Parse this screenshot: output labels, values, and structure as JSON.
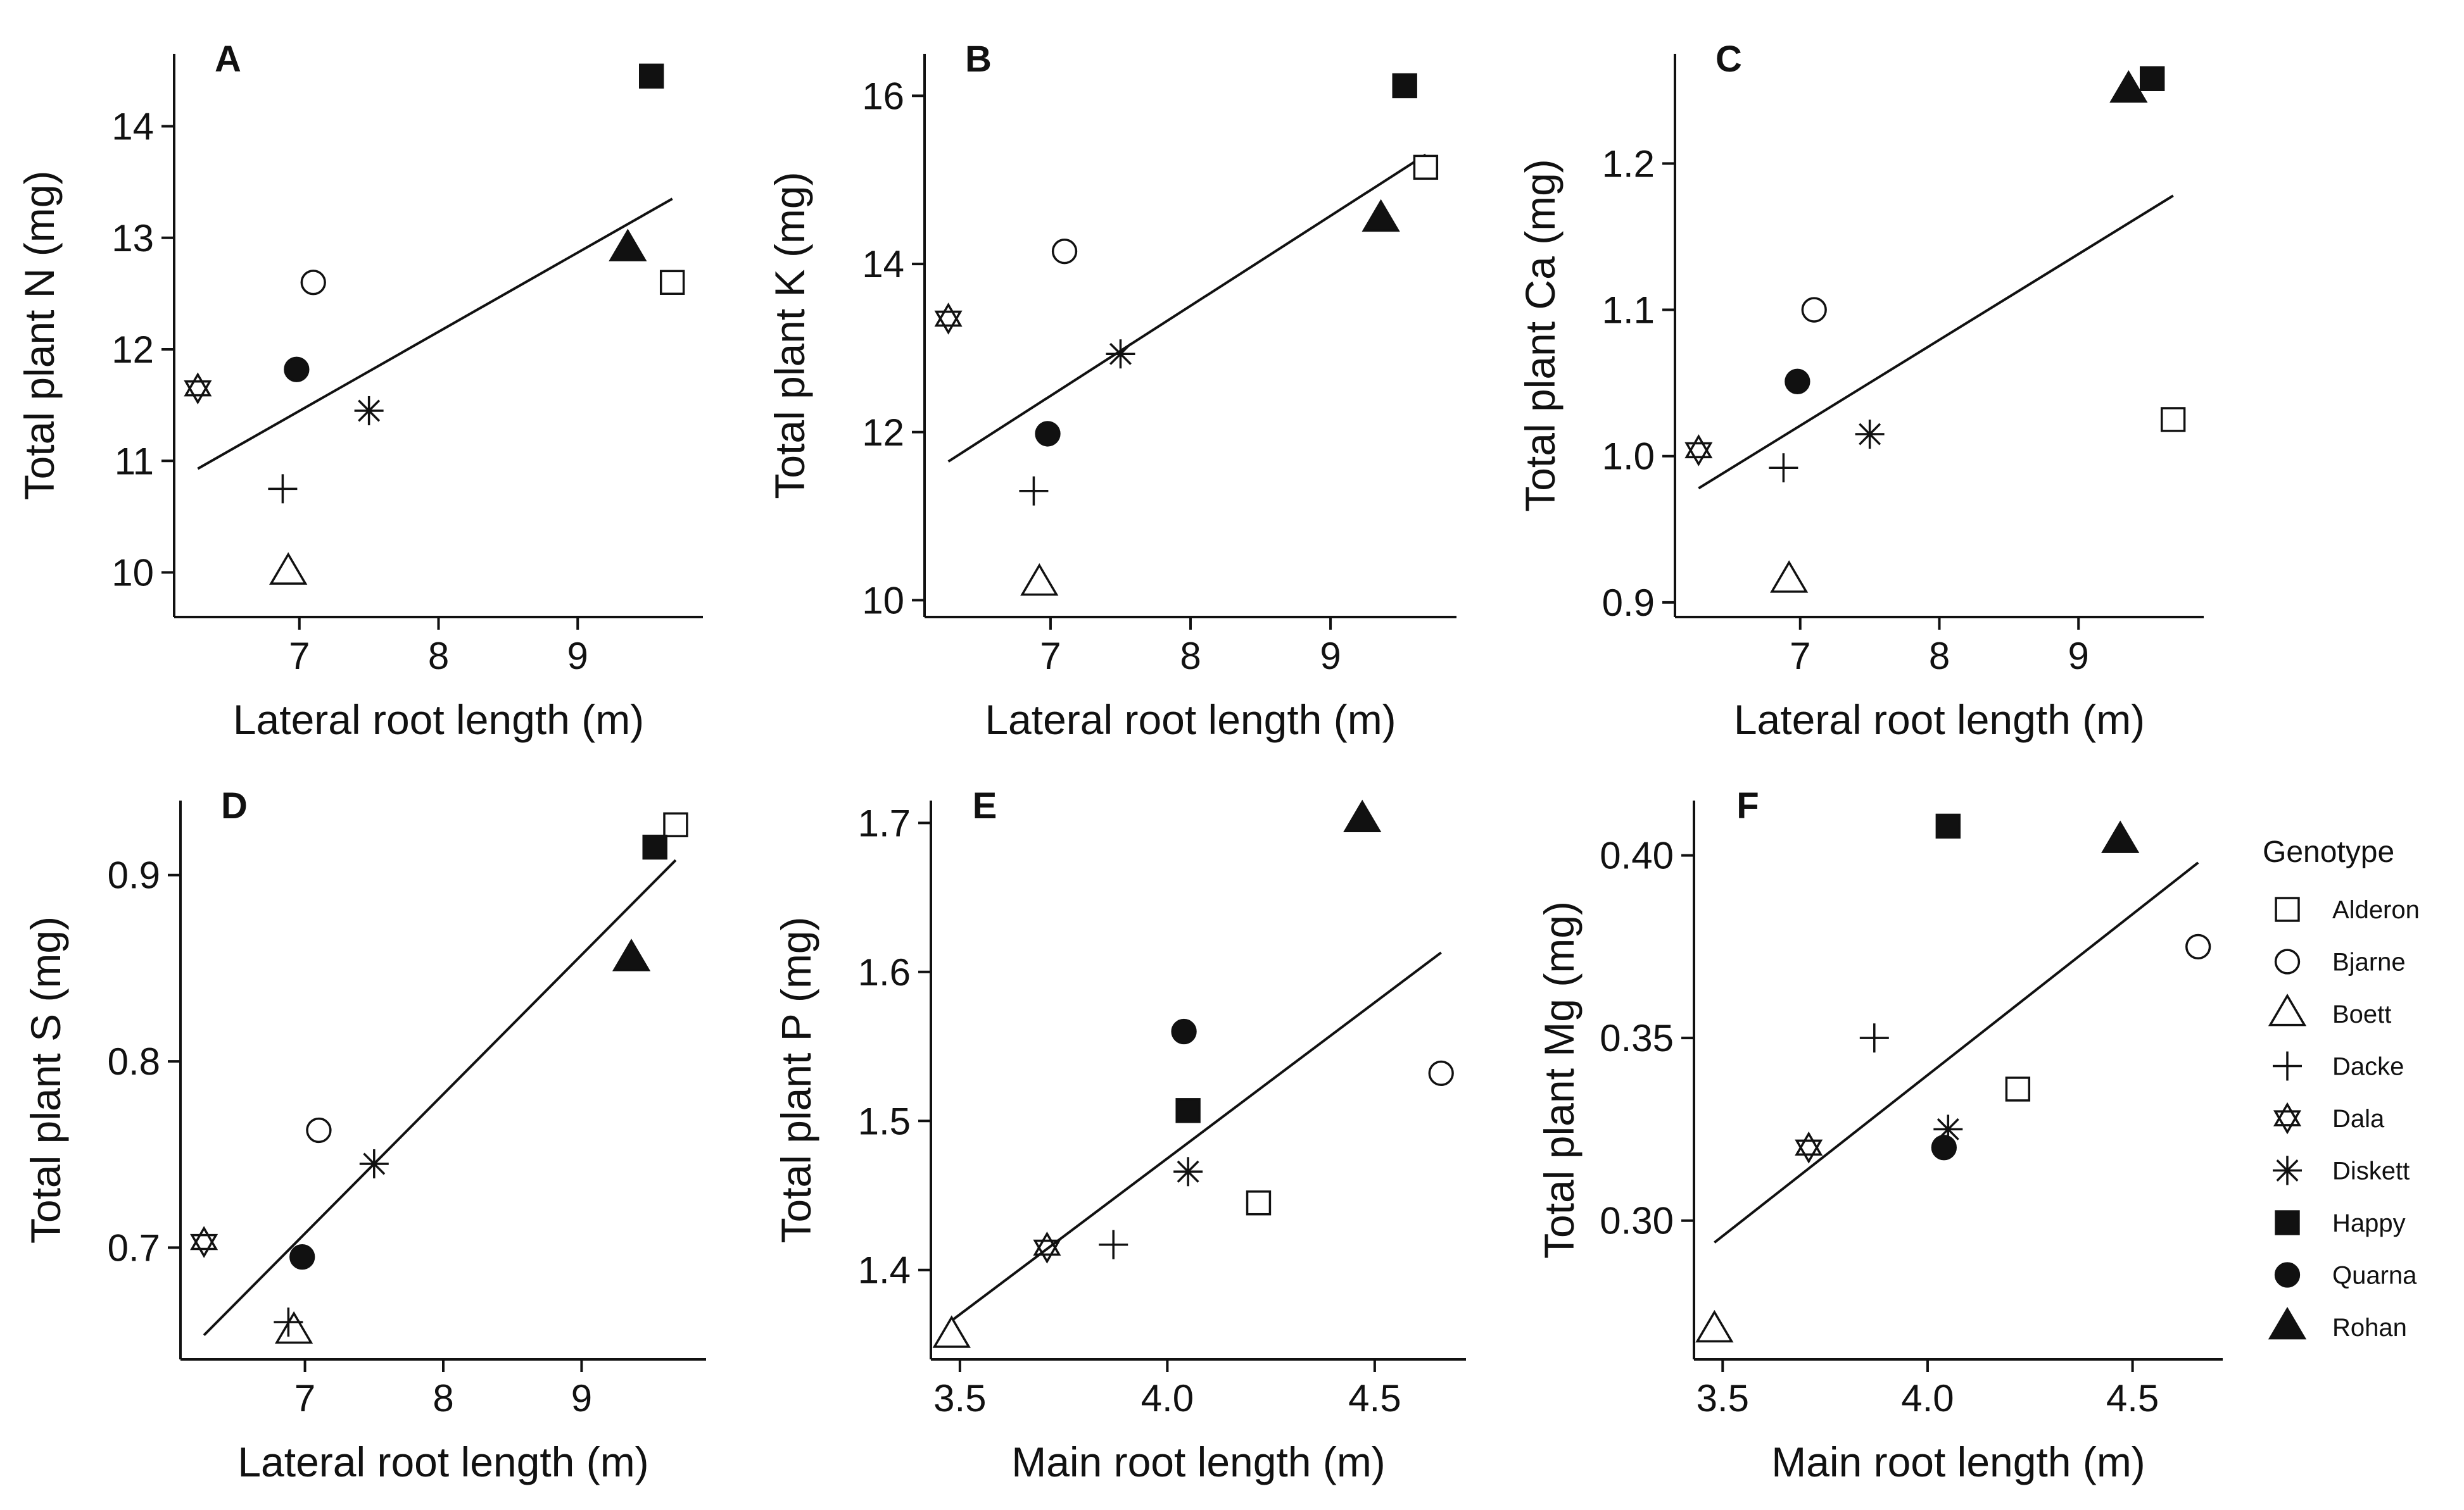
{
  "legend": {
    "title": "Genotype",
    "entries": [
      {
        "name": "Alderon",
        "marker": "open-square"
      },
      {
        "name": "Bjarne",
        "marker": "open-circle"
      },
      {
        "name": "Boett",
        "marker": "open-triangle"
      },
      {
        "name": "Dacke",
        "marker": "plus"
      },
      {
        "name": "Dala",
        "marker": "star-of-david"
      },
      {
        "name": "Diskett",
        "marker": "asterisk"
      },
      {
        "name": "Happy",
        "marker": "filled-square"
      },
      {
        "name": "Quarna",
        "marker": "filled-circle"
      },
      {
        "name": "Rohan",
        "marker": "filled-triangle"
      }
    ]
  },
  "chart_data": [
    {
      "panel": "A",
      "type": "scatter",
      "xlabel": "Lateral root length (m)",
      "ylabel": "Total plant N (mg)",
      "xlim": [
        6.1,
        9.9
      ],
      "ylim": [
        9.6,
        14.65
      ],
      "xticks": [
        7,
        8,
        9
      ],
      "yticks": [
        10,
        11,
        12,
        13,
        14
      ],
      "tick_decimals": [
        0,
        0
      ],
      "fit": [
        [
          6.27,
          10.93
        ],
        [
          9.68,
          13.35
        ]
      ],
      "points": [
        {
          "genotype": "Alderon",
          "x": 9.68,
          "y": 12.6
        },
        {
          "genotype": "Bjarne",
          "x": 7.1,
          "y": 12.6
        },
        {
          "genotype": "Boett",
          "x": 6.92,
          "y": 10.0
        },
        {
          "genotype": "Dacke",
          "x": 6.88,
          "y": 10.75
        },
        {
          "genotype": "Dala",
          "x": 6.27,
          "y": 11.65
        },
        {
          "genotype": "Diskett",
          "x": 7.5,
          "y": 11.45
        },
        {
          "genotype": "Happy",
          "x": 9.53,
          "y": 14.45
        },
        {
          "genotype": "Quarna",
          "x": 6.98,
          "y": 11.82
        },
        {
          "genotype": "Rohan",
          "x": 9.36,
          "y": 12.9
        }
      ]
    },
    {
      "panel": "B",
      "type": "scatter",
      "xlabel": "Lateral root length (m)",
      "ylabel": "Total plant K (mg)",
      "xlim": [
        6.1,
        9.9
      ],
      "ylim": [
        9.8,
        16.5
      ],
      "xticks": [
        7,
        8,
        9
      ],
      "yticks": [
        10,
        12,
        14,
        16
      ],
      "tick_decimals": [
        0,
        0
      ],
      "fit": [
        [
          6.27,
          11.65
        ],
        [
          9.68,
          15.3
        ]
      ],
      "points": [
        {
          "genotype": "Alderon",
          "x": 9.68,
          "y": 15.15
        },
        {
          "genotype": "Bjarne",
          "x": 7.1,
          "y": 14.15
        },
        {
          "genotype": "Boett",
          "x": 6.92,
          "y": 10.2
        },
        {
          "genotype": "Dacke",
          "x": 6.88,
          "y": 11.3
        },
        {
          "genotype": "Dala",
          "x": 6.27,
          "y": 13.35
        },
        {
          "genotype": "Diskett",
          "x": 7.5,
          "y": 12.93
        },
        {
          "genotype": "Happy",
          "x": 9.53,
          "y": 16.12
        },
        {
          "genotype": "Quarna",
          "x": 6.98,
          "y": 11.98
        },
        {
          "genotype": "Rohan",
          "x": 9.36,
          "y": 14.53
        }
      ]
    },
    {
      "panel": "C",
      "type": "scatter",
      "xlabel": "Lateral root length (m)",
      "ylabel": "Total plant Ca (mg)",
      "xlim": [
        6.1,
        9.9
      ],
      "ylim": [
        0.89,
        1.275
      ],
      "xticks": [
        7,
        8,
        9
      ],
      "yticks": [
        0.9,
        1.0,
        1.1,
        1.2
      ],
      "tick_decimals": [
        0,
        1
      ],
      "fit": [
        [
          6.27,
          0.978
        ],
        [
          9.68,
          1.178
        ]
      ],
      "points": [
        {
          "genotype": "Alderon",
          "x": 9.68,
          "y": 1.025
        },
        {
          "genotype": "Bjarne",
          "x": 7.1,
          "y": 1.1
        },
        {
          "genotype": "Boett",
          "x": 6.92,
          "y": 0.915
        },
        {
          "genotype": "Dacke",
          "x": 6.88,
          "y": 0.992
        },
        {
          "genotype": "Dala",
          "x": 6.27,
          "y": 1.004
        },
        {
          "genotype": "Diskett",
          "x": 7.5,
          "y": 1.015
        },
        {
          "genotype": "Happy",
          "x": 9.53,
          "y": 1.258
        },
        {
          "genotype": "Quarna",
          "x": 6.98,
          "y": 1.051
        },
        {
          "genotype": "Rohan",
          "x": 9.36,
          "y": 1.25
        }
      ]
    },
    {
      "panel": "D",
      "type": "scatter",
      "xlabel": "Lateral root length (m)",
      "ylabel": "Total plant S (mg)",
      "xlim": [
        6.1,
        9.9
      ],
      "ylim": [
        0.64,
        0.94
      ],
      "xticks": [
        7,
        8,
        9
      ],
      "yticks": [
        0.7,
        0.8,
        0.9
      ],
      "tick_decimals": [
        0,
        1
      ],
      "fit": [
        [
          6.27,
          0.653
        ],
        [
          9.68,
          0.908
        ]
      ],
      "points": [
        {
          "genotype": "Alderon",
          "x": 9.68,
          "y": 0.927
        },
        {
          "genotype": "Bjarne",
          "x": 7.1,
          "y": 0.763
        },
        {
          "genotype": "Boett",
          "x": 6.92,
          "y": 0.655
        },
        {
          "genotype": "Dacke",
          "x": 6.88,
          "y": 0.66
        },
        {
          "genotype": "Dala",
          "x": 6.27,
          "y": 0.703
        },
        {
          "genotype": "Diskett",
          "x": 7.5,
          "y": 0.745
        },
        {
          "genotype": "Happy",
          "x": 9.53,
          "y": 0.915
        },
        {
          "genotype": "Quarna",
          "x": 6.98,
          "y": 0.695
        },
        {
          "genotype": "Rohan",
          "x": 9.36,
          "y": 0.855
        }
      ]
    },
    {
      "panel": "E",
      "type": "scatter",
      "xlabel": "Main root length (m)",
      "ylabel": "Total plant P (mg)",
      "xlim": [
        3.43,
        4.72
      ],
      "ylim": [
        1.34,
        1.715
      ],
      "xticks": [
        3.5,
        4.0,
        4.5
      ],
      "yticks": [
        1.4,
        1.5,
        1.6,
        1.7
      ],
      "tick_decimals": [
        1,
        1
      ],
      "fit": [
        [
          3.48,
          1.366
        ],
        [
          4.66,
          1.613
        ]
      ],
      "points": [
        {
          "genotype": "Alderon",
          "x": 4.22,
          "y": 1.445
        },
        {
          "genotype": "Bjarne",
          "x": 4.66,
          "y": 1.532
        },
        {
          "genotype": "Boett",
          "x": 3.48,
          "y": 1.356
        },
        {
          "genotype": "Dacke",
          "x": 3.87,
          "y": 1.417
        },
        {
          "genotype": "Dala",
          "x": 3.71,
          "y": 1.415
        },
        {
          "genotype": "Diskett",
          "x": 4.05,
          "y": 1.466
        },
        {
          "genotype": "Happy",
          "x": 4.05,
          "y": 1.507
        },
        {
          "genotype": "Quarna",
          "x": 4.04,
          "y": 1.56
        },
        {
          "genotype": "Rohan",
          "x": 4.47,
          "y": 1.702
        }
      ]
    },
    {
      "panel": "F",
      "type": "scatter",
      "xlabel": "Main root length (m)",
      "ylabel": "Total plant Mg (mg)",
      "xlim": [
        3.43,
        4.72
      ],
      "ylim": [
        0.262,
        0.415
      ],
      "xticks": [
        3.5,
        4.0,
        4.5
      ],
      "yticks": [
        0.3,
        0.35,
        0.4
      ],
      "tick_decimals": [
        1,
        2
      ],
      "fit": [
        [
          3.48,
          0.294
        ],
        [
          4.66,
          0.398
        ]
      ],
      "points": [
        {
          "genotype": "Alderon",
          "x": 4.22,
          "y": 0.336
        },
        {
          "genotype": "Bjarne",
          "x": 4.66,
          "y": 0.375
        },
        {
          "genotype": "Boett",
          "x": 3.48,
          "y": 0.27
        },
        {
          "genotype": "Dacke",
          "x": 3.87,
          "y": 0.35
        },
        {
          "genotype": "Dala",
          "x": 3.71,
          "y": 0.32
        },
        {
          "genotype": "Diskett",
          "x": 4.05,
          "y": 0.325
        },
        {
          "genotype": "Happy",
          "x": 4.05,
          "y": 0.408
        },
        {
          "genotype": "Quarna",
          "x": 4.04,
          "y": 0.32
        },
        {
          "genotype": "Rohan",
          "x": 4.47,
          "y": 0.404
        }
      ]
    }
  ]
}
